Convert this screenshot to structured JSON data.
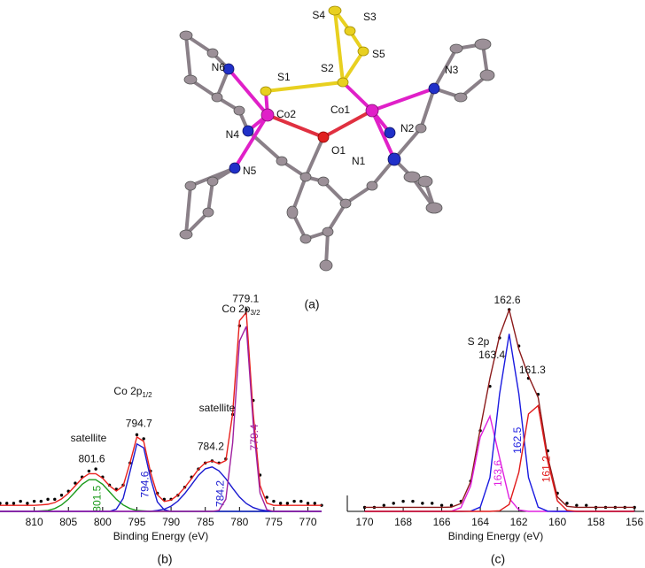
{
  "molecule": {
    "atom_labels": [
      "S4",
      "S3",
      "S5",
      "S2",
      "S1",
      "N6",
      "Co2",
      "Co1",
      "N3",
      "N4",
      "N2",
      "O1",
      "N1",
      "N5"
    ],
    "caption": "(a)"
  },
  "chart_data": [
    {
      "type": "line",
      "panel": "(b)",
      "x_label": "Binding Energy (eV)",
      "x": [
        815,
        814,
        813,
        812,
        811,
        810,
        809,
        808,
        807,
        806,
        805,
        804,
        803,
        802,
        801,
        800,
        799,
        798,
        797,
        796,
        795,
        794,
        793,
        792,
        791,
        790,
        789,
        788,
        787,
        786,
        785,
        784,
        783,
        782,
        781,
        780,
        779,
        778,
        777,
        776,
        775,
        774,
        773,
        772,
        771,
        770,
        769,
        768
      ],
      "xlim": [
        815,
        768
      ],
      "xticks": [
        810,
        805,
        800,
        795,
        790,
        785,
        780,
        775,
        770
      ],
      "ylim": [
        0,
        100
      ],
      "series": [
        {
          "type": "scatter",
          "color": "#000000",
          "values": [
            4,
            4,
            4,
            5,
            4,
            5,
            5,
            6,
            6,
            8,
            10,
            14,
            17,
            20,
            21,
            17,
            13,
            11,
            13,
            24,
            38,
            36,
            20,
            9,
            6,
            6,
            8,
            12,
            17,
            21,
            24,
            25,
            24,
            26,
            48,
            92,
            100,
            55,
            18,
            7,
            5,
            4,
            4,
            5,
            5,
            4,
            4,
            3
          ]
        },
        {
          "type": "line",
          "color": "#e8201c",
          "values": [
            3,
            3,
            3,
            3,
            3,
            3,
            3.2,
            3.5,
            4.4,
            6.2,
            9.0,
            12.7,
            16.4,
            18.7,
            18.7,
            16.4,
            12.7,
            10.1,
            12.6,
            24.0,
            36.9,
            34.7,
            19.4,
            8.2,
            4.9,
            5.6,
            8.1,
            11.8,
            16.3,
            20.9,
            24.1,
            25.0,
            23.6,
            25.2,
            48.5,
            94.5,
            98.6,
            48.5,
            12.9,
            4.1,
            3,
            3,
            3,
            3,
            3,
            3,
            3,
            3
          ]
        },
        {
          "type": "line",
          "name": "801.5",
          "color": "#1a9a1a",
          "values": [
            0,
            0,
            0,
            0,
            0,
            0,
            0.2,
            0.5,
            1.4,
            3.2,
            6.0,
            9.7,
            13.4,
            15.7,
            15.7,
            13.4,
            9.7,
            6.0,
            3.2,
            1.4,
            0.5,
            0.2,
            0,
            0,
            0,
            0,
            0,
            0,
            0,
            0,
            0,
            0,
            0,
            0,
            0,
            0,
            0,
            0,
            0,
            0,
            0,
            0,
            0,
            0,
            0,
            0,
            0,
            0
          ]
        },
        {
          "type": "line",
          "name": "794.6",
          "color": "#1a1ad0",
          "values": [
            0,
            0,
            0,
            0,
            0,
            0,
            0,
            0,
            0,
            0,
            0,
            0,
            0,
            0,
            0,
            0,
            0,
            1.1,
            6.4,
            19.6,
            33.4,
            31.5,
            16.4,
            4.7,
            0.8,
            0,
            0,
            0,
            0,
            0,
            0,
            0,
            0,
            0,
            0,
            0,
            0,
            0,
            0,
            0,
            0,
            0,
            0,
            0,
            0,
            0,
            0,
            0
          ]
        },
        {
          "type": "line",
          "name": "784.2",
          "color": "#1a1ad0",
          "values": [
            0,
            0,
            0,
            0,
            0,
            0,
            0,
            0,
            0,
            0,
            0,
            0,
            0,
            0,
            0,
            0,
            0,
            0,
            0,
            0,
            0,
            0,
            0,
            0.5,
            1.1,
            2.6,
            5.1,
            8.8,
            13.3,
            17.9,
            21.1,
            22.0,
            20.1,
            16.2,
            11.5,
            7.1,
            3.9,
            1.9,
            0.8,
            0.3,
            0,
            0,
            0,
            0,
            0,
            0,
            0,
            0
          ]
        },
        {
          "type": "line",
          "name": "779.4",
          "color": "#a020a0",
          "values": [
            0,
            0,
            0,
            0,
            0,
            0,
            0,
            0,
            0,
            0,
            0,
            0,
            0,
            0,
            0,
            0,
            0,
            0,
            0,
            0,
            0,
            0,
            0,
            0,
            0,
            0,
            0,
            0,
            0,
            0,
            0,
            0,
            0.5,
            6.0,
            34.0,
            84.4,
            91.7,
            43.6,
            9.1,
            0.8,
            0,
            0,
            0,
            0,
            0,
            0,
            0,
            0
          ]
        }
      ],
      "peak_labels": [
        801.6,
        794.7,
        784.2,
        779.1
      ],
      "annotations": [
        {
          "text": "satellite"
        },
        {
          "text": "satellite"
        },
        {
          "text": "Co 2p",
          "sub": "1/2"
        },
        {
          "text": "Co 2p",
          "sub": "3/2"
        }
      ]
    },
    {
      "type": "line",
      "panel": "(c)",
      "x_label": "Binding Energy (eV)",
      "x": [
        170,
        169.5,
        169,
        168.5,
        168,
        167.5,
        167,
        166.5,
        166,
        165.5,
        165,
        164.5,
        164,
        163.5,
        163,
        162.5,
        162,
        161.5,
        161,
        160.5,
        160,
        159.5,
        159,
        158.5,
        158,
        157.5,
        157,
        156.5,
        156
      ],
      "xlim": [
        170.9,
        155.5
      ],
      "xticks": [
        170,
        168,
        166,
        164,
        162,
        160,
        158,
        156
      ],
      "ylim": [
        0,
        100
      ],
      "series": [
        {
          "type": "scatter",
          "color": "#000000",
          "values": [
            2,
            2,
            3,
            4,
            5,
            5,
            4,
            4,
            3,
            3,
            5,
            15,
            40,
            62,
            86,
            100,
            82,
            66,
            58,
            30,
            9,
            4,
            3,
            3,
            2,
            2,
            2,
            2,
            2
          ]
        },
        {
          "type": "line",
          "color": "#8b1a1a",
          "values": [
            2,
            2,
            2,
            2,
            2,
            2,
            2,
            2,
            2,
            2.1,
            3.9,
            14.7,
            41.0,
            66.0,
            87.1,
            99.9,
            80.4,
            67.1,
            56.5,
            27.0,
            7.2,
            2.5,
            2,
            2,
            2,
            2,
            2,
            2,
            2
          ]
        },
        {
          "type": "line",
          "name": "163.6",
          "color": "#e020e0",
          "values": [
            0,
            0,
            0,
            0,
            0,
            0,
            0,
            0,
            0,
            0.1,
            1.9,
            12.6,
            36.9,
            47.2,
            26.5,
            6.5,
            0.7,
            0,
            0,
            0,
            0,
            0,
            0,
            0,
            0,
            0,
            0,
            0,
            0
          ]
        },
        {
          "type": "line",
          "name": "162.5",
          "color": "#1a1ae0",
          "values": [
            0,
            0,
            0,
            0,
            0,
            0,
            0,
            0,
            0,
            0,
            0,
            0.1,
            2.1,
            16.8,
            58.3,
            88,
            58.3,
            16.8,
            2.1,
            0.1,
            0,
            0,
            0,
            0,
            0,
            0,
            0,
            0,
            0
          ]
        },
        {
          "type": "line",
          "name": "161.2",
          "color": "#e01a1a",
          "values": [
            0,
            0,
            0,
            0,
            0,
            0,
            0,
            0,
            0,
            0,
            0,
            0,
            0,
            0,
            0.3,
            3.4,
            19.4,
            48.3,
            52.4,
            24.9,
            5.2,
            0.5,
            0,
            0,
            0,
            0,
            0,
            0,
            0
          ]
        }
      ],
      "peak_labels": [
        163.4,
        162.6,
        161.3
      ],
      "annotations": [
        {
          "text": "S 2p"
        }
      ]
    }
  ]
}
